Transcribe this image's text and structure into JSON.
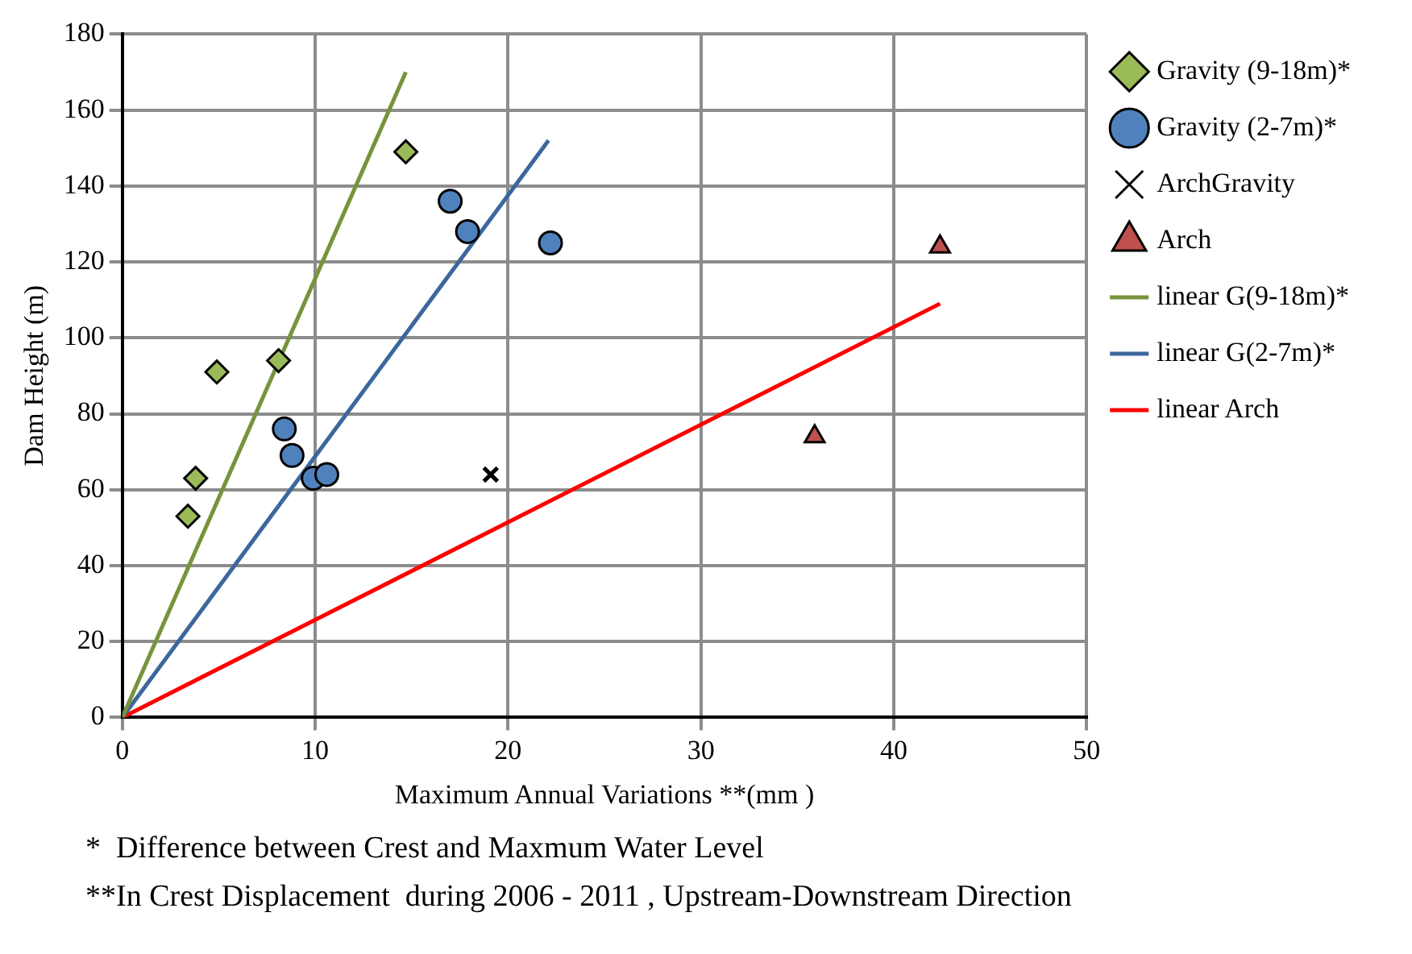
{
  "chart_data": {
    "type": "scatter",
    "xlabel": "Maximum Annual Variations **(mm )",
    "ylabel": "Dam Height (m)",
    "xlim": [
      0,
      50
    ],
    "xticks": [
      0,
      10,
      20,
      30,
      40,
      50
    ],
    "ylim": [
      0,
      180
    ],
    "yticks": [
      0,
      20,
      40,
      60,
      80,
      100,
      120,
      140,
      160,
      180
    ],
    "grid": true,
    "legend": "right",
    "series": [
      {
        "name": "Gravity (9-18m)*",
        "marker": "diamond",
        "color": "#9bbb59",
        "x": [
          3.4,
          3.8,
          4.9,
          8.1,
          14.7
        ],
        "values": [
          53,
          63,
          91,
          94,
          149
        ]
      },
      {
        "name": "Gravity (2-7m)*",
        "marker": "circle",
        "color": "#4f81bd",
        "x": [
          8.4,
          8.8,
          9.9,
          10.6,
          17.0,
          17.9,
          22.2
        ],
        "values": [
          76,
          69,
          63,
          64,
          136,
          128,
          125
        ]
      },
      {
        "name": "ArchGravity",
        "marker": "cross",
        "color": "#000000",
        "x": [
          19.1
        ],
        "values": [
          64
        ]
      },
      {
        "name": "Arch",
        "marker": "triangle",
        "color": "#c0504d",
        "x": [
          35.9,
          42.4
        ],
        "values": [
          74,
          124
        ]
      },
      {
        "name": "linear G(9-18m)*",
        "type": "line",
        "marker": "none",
        "color": "#77933c",
        "x": [
          0,
          14.7
        ],
        "values": [
          0,
          170
        ]
      },
      {
        "name": "linear G(2-7m)*",
        "type": "line",
        "marker": "none",
        "color": "#3c679c",
        "x": [
          0,
          22.1
        ],
        "values": [
          0,
          152
        ]
      },
      {
        "name": "linear Arch",
        "type": "line",
        "marker": "none",
        "color": "#ff0000",
        "x": [
          0,
          42.4
        ],
        "values": [
          0,
          109
        ]
      }
    ],
    "annotations": [
      "*  Difference between Crest and Maxmum Water Level",
      "**In Crest Displacement  during 2006 - 2011 , Upstream-Downstream Direction"
    ]
  }
}
